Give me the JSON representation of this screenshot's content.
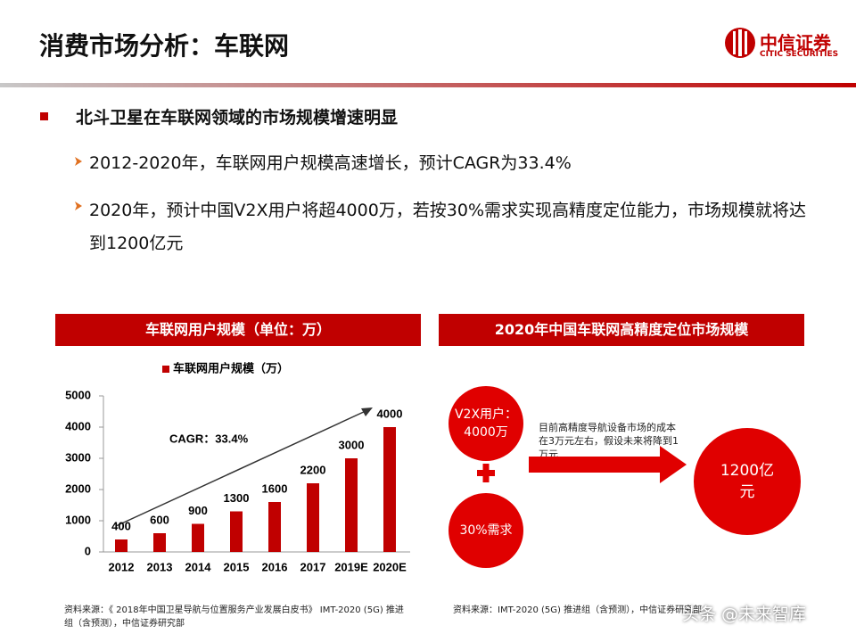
{
  "header": {
    "title": "消费市场分析：车联网",
    "logo_cn": "中信证券",
    "logo_en": "CITIC SECURITIES"
  },
  "bullets": {
    "main": "北斗卫星在车联网领域的市场规模增速明显",
    "sub": [
      "2012-2020年，车联网用户规模高速增长，预计CAGR为33.4%",
      "2020年，预计中国V2X用户将超4000万，若按30%需求实现高精度定位能力，市场规模就将达到1200亿元"
    ]
  },
  "left_panel": {
    "heading": "车联网用户规模（单位：万）",
    "source": "资料来源：《 2018年中国卫星导航与位置服务产业发展白皮书》 IMT-2020 (5G) 推进组（含预测），中信证券研究部"
  },
  "chart_data": {
    "type": "bar",
    "categories": [
      "2012",
      "2013",
      "2014",
      "2015",
      "2016",
      "2017",
      "2019E",
      "2020E"
    ],
    "series": [
      {
        "name": "车联网用户规模（万）",
        "color": "#c00000",
        "values": [
          400,
          600,
          900,
          1300,
          1600,
          2200,
          3000,
          4000
        ]
      }
    ],
    "ylim": [
      0,
      5000
    ],
    "yticks": [
      0,
      1000,
      2000,
      3000,
      4000,
      5000
    ],
    "grid": false,
    "annotation": "CAGR：33.4%"
  },
  "right_panel": {
    "heading": "2020年中国车联网高精度定位市场规模",
    "circle_users": "V2X用户：4000万",
    "circle_demand": "30%需求",
    "arrow_text": "目前高精度导航设备市场的成本在3万元左右，假设未来将降到1万元",
    "circle_result": "1200亿元",
    "source": "资料来源：IMT-2020 (5G) 推进组（含预测），中信证券研究部"
  },
  "watermark": "头条 @未来智库"
}
